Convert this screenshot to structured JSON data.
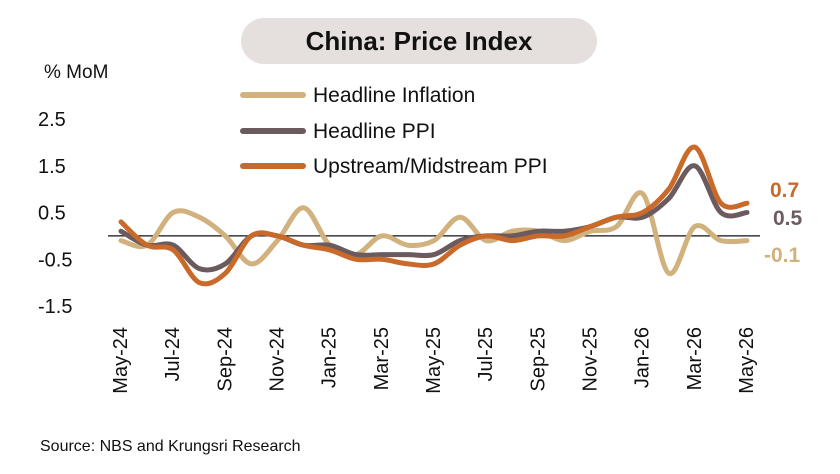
{
  "chart_data": {
    "type": "line",
    "title": "China: Price Index",
    "ylabel": "% MoM",
    "ylim": [
      -1.5,
      2.5
    ],
    "y_ticks": [
      "2.5",
      "1.5",
      "0.5",
      "-0.5",
      "-1.5"
    ],
    "y_tick_values": [
      2.5,
      1.5,
      0.5,
      -0.5,
      -1.5
    ],
    "x": [
      "May-24",
      "Jun-24",
      "Jul-24",
      "Aug-24",
      "Sep-24",
      "Oct-24",
      "Nov-24",
      "Dec-24",
      "Jan-25",
      "Feb-25",
      "Mar-25",
      "Apr-25",
      "May-25",
      "Jun-25",
      "Jul-25",
      "Aug-25",
      "Sep-25",
      "Oct-25",
      "Nov-25",
      "Dec-25",
      "Jan-26",
      "Feb-26",
      "Mar-26",
      "Apr-26",
      "May-26"
    ],
    "x_tick_labels": [
      "May-24",
      "Jul-24",
      "Sep-24",
      "Nov-24",
      "Jan-25",
      "Mar-25",
      "May-25",
      "Jul-25",
      "Sep-25",
      "Nov-25",
      "Jan-26",
      "Mar-26",
      "May-26"
    ],
    "legend_position": "top-center",
    "series": [
      {
        "name": "Headline Inflation",
        "color": "#d1b17d",
        "values": [
          -0.1,
          -0.2,
          0.5,
          0.4,
          0.0,
          -0.6,
          -0.1,
          0.6,
          -0.2,
          -0.4,
          0.0,
          -0.2,
          -0.1,
          0.4,
          -0.1,
          0.1,
          0.1,
          -0.1,
          0.1,
          0.2,
          0.9,
          -0.8,
          0.2,
          -0.1,
          -0.1
        ],
        "end_label": "-0.1"
      },
      {
        "name": "Headline PPI",
        "color": "#6b5b5e",
        "values": [
          0.1,
          -0.2,
          -0.2,
          -0.7,
          -0.6,
          0.0,
          0.0,
          -0.2,
          -0.2,
          -0.4,
          -0.4,
          -0.4,
          -0.4,
          -0.1,
          0.0,
          0.0,
          0.1,
          0.1,
          0.2,
          0.4,
          0.4,
          0.8,
          1.5,
          0.5,
          0.5
        ],
        "end_label": "0.5"
      },
      {
        "name": "Upstream/Midstream PPI",
        "color": "#c96a2a",
        "values": [
          0.3,
          -0.2,
          -0.3,
          -1.0,
          -0.8,
          0.0,
          0.0,
          -0.2,
          -0.3,
          -0.5,
          -0.5,
          -0.6,
          -0.6,
          -0.2,
          0.0,
          -0.1,
          0.0,
          0.0,
          0.2,
          0.4,
          0.5,
          1.0,
          1.9,
          0.7,
          0.7
        ],
        "end_label": "0.7"
      }
    ]
  },
  "source": "Source: NBS and Krungsri Research"
}
